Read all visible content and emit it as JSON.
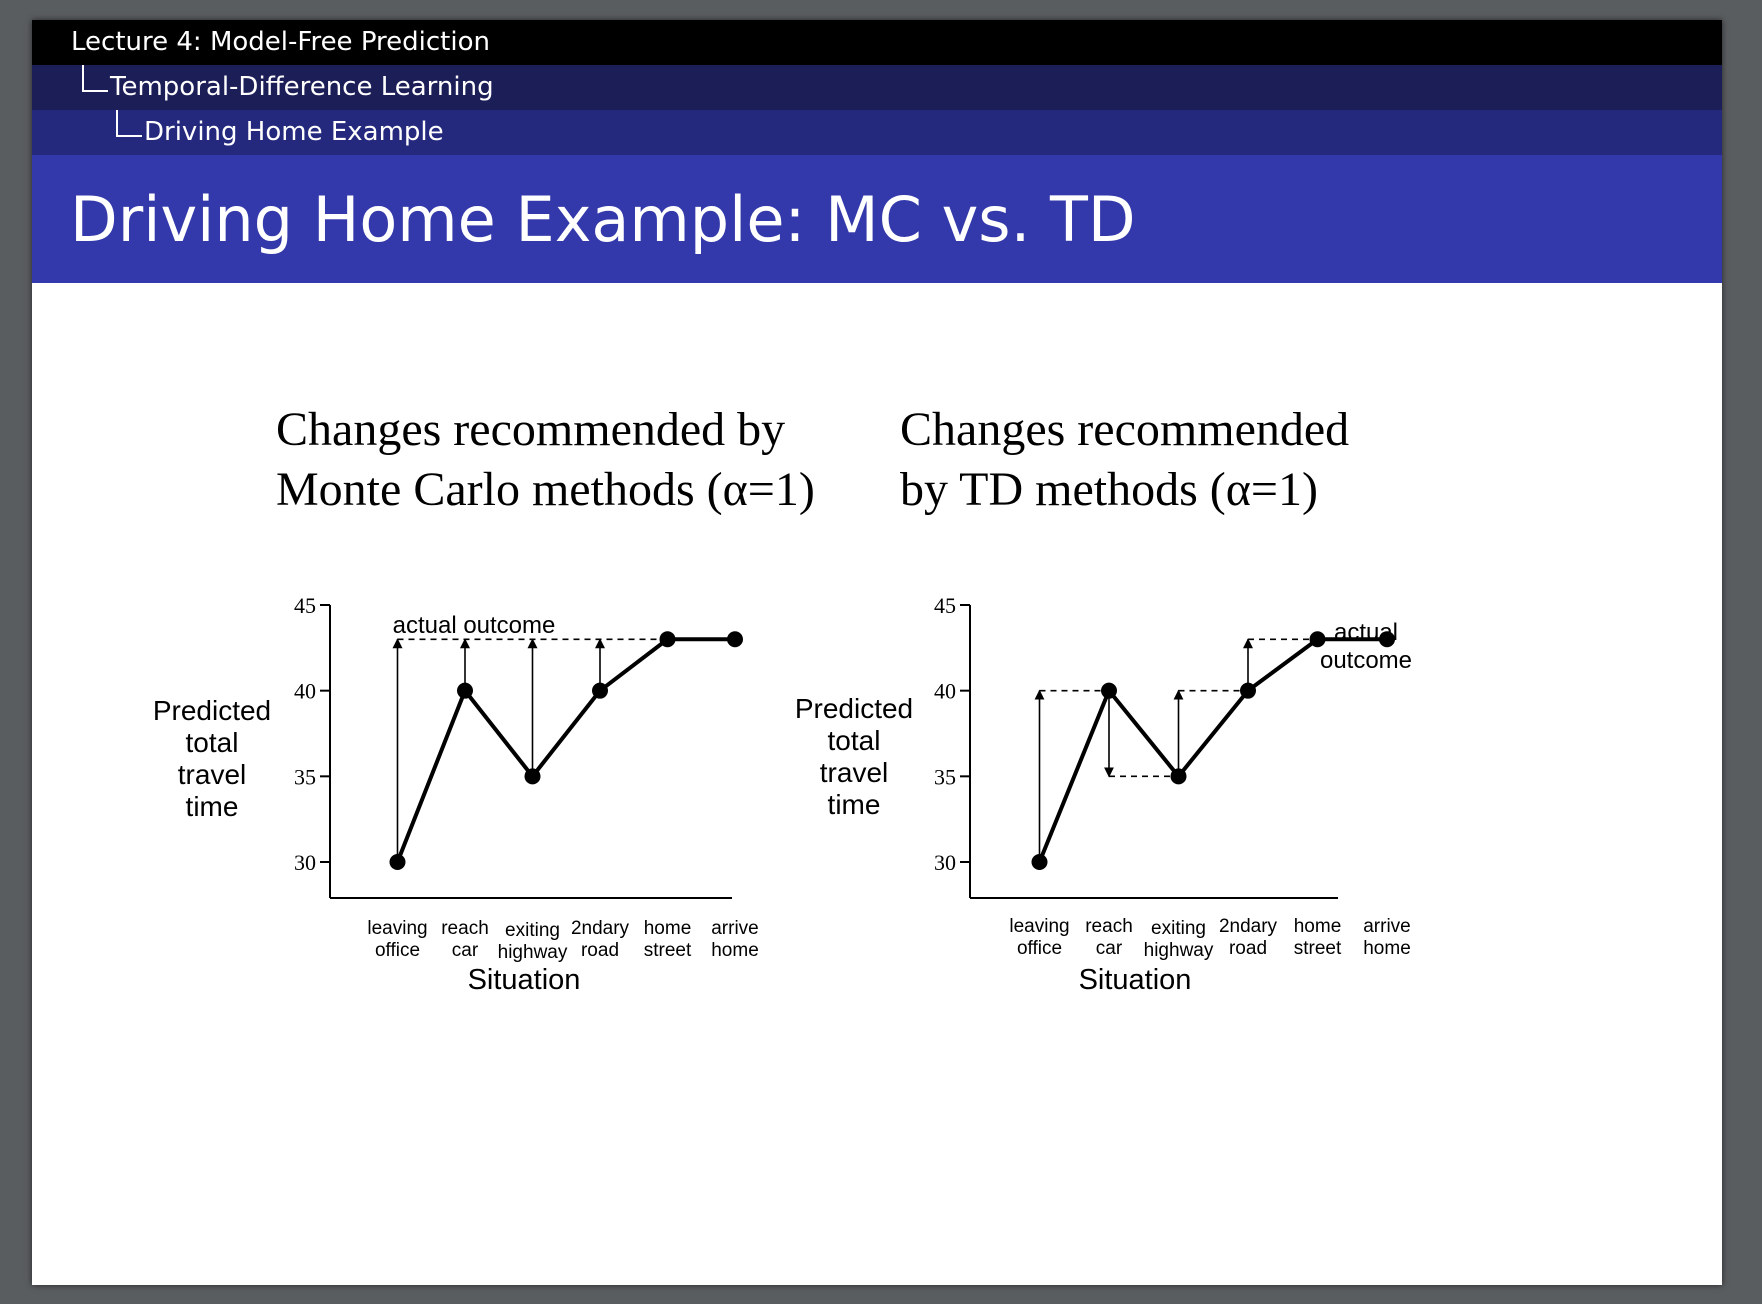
{
  "header": {
    "lecture": "Lecture 4:  Model-Free Prediction",
    "section": "Temporal-Difference Learning",
    "subsection": "Driving Home Example"
  },
  "slide_title": "Driving Home Example:  MC vs.  TD",
  "chart_data": [
    {
      "type": "line",
      "title": "Changes recommended by Monte Carlo methods (α=1)",
      "title_lines": [
        "Changes recommended by",
        "Monte Carlo methods (α=1)"
      ],
      "xlabel": "Situation",
      "ylabel_lines": [
        "Predicted",
        "total",
        "travel",
        "time"
      ],
      "categories": [
        [
          "leaving",
          "office"
        ],
        [
          "reach",
          "car"
        ],
        [
          "exiting",
          "highway"
        ],
        [
          "2ndary",
          "road"
        ],
        [
          "home",
          "street"
        ],
        [
          "arrive",
          "home"
        ]
      ],
      "values": [
        30,
        40,
        35,
        40,
        43,
        43
      ],
      "yticks": [
        30,
        35,
        40,
        45
      ],
      "ylim": [
        28,
        45
      ],
      "annotation_lines": [
        "actual outcome"
      ],
      "targets": [
        43,
        43,
        43,
        43,
        null,
        null
      ],
      "dashed_lines": [
        [
          0,
          4,
          43
        ]
      ]
    },
    {
      "type": "line",
      "title": "Changes recommended by TD methods (α=1)",
      "title_lines": [
        "Changes recommended",
        "by TD methods (α=1)"
      ],
      "xlabel": "Situation",
      "ylabel_lines": [
        "Predicted",
        "total",
        "travel",
        "time"
      ],
      "categories": [
        [
          "leaving",
          "office"
        ],
        [
          "reach",
          "car"
        ],
        [
          "exiting",
          "highway"
        ],
        [
          "2ndary",
          "road"
        ],
        [
          "home",
          "street"
        ],
        [
          "arrive",
          "home"
        ]
      ],
      "values": [
        30,
        40,
        35,
        40,
        43,
        43
      ],
      "yticks": [
        30,
        35,
        40,
        45
      ],
      "ylim": [
        28,
        45
      ],
      "annotation_lines": [
        "actual",
        "outcome"
      ],
      "targets": [
        40,
        35,
        40,
        43,
        null,
        null
      ],
      "dashed_lines": [
        [
          0,
          1,
          40
        ],
        [
          1,
          2,
          35
        ],
        [
          2,
          3,
          40
        ],
        [
          3,
          4,
          43
        ]
      ]
    }
  ]
}
